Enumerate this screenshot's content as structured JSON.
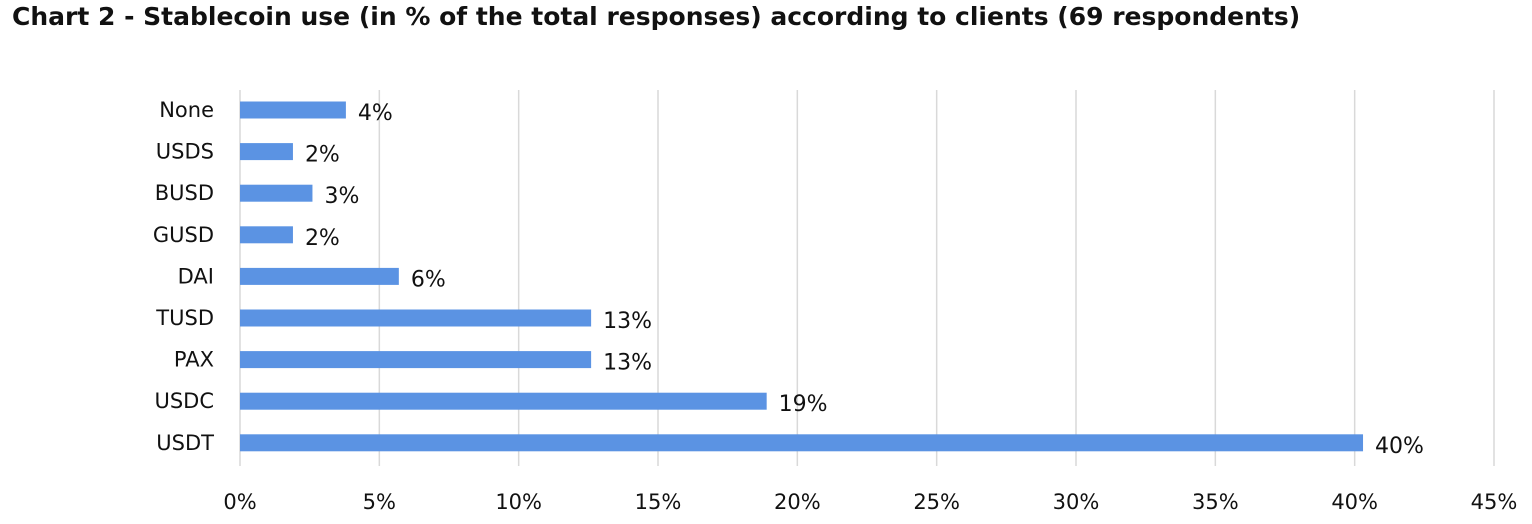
{
  "chart_data": {
    "type": "bar",
    "orientation": "horizontal",
    "title": "Chart 2 - Stablecoin use (in % of the total responses) according to clients (69 respondents)",
    "categories": [
      "None",
      "USDS",
      "BUSD",
      "GUSD",
      "DAI",
      "TUSD",
      "PAX",
      "USDC",
      "USDT"
    ],
    "values": [
      3.8,
      1.9,
      2.6,
      1.9,
      5.7,
      12.6,
      12.6,
      18.9,
      40.3
    ],
    "value_labels": [
      "4%",
      "2%",
      "3%",
      "2%",
      "6%",
      "13%",
      "13%",
      "19%",
      "40%"
    ],
    "xlim": [
      0,
      45
    ],
    "x_ticks": [
      0,
      5,
      10,
      15,
      20,
      25,
      30,
      35,
      40,
      45
    ],
    "x_tick_labels": [
      "0%",
      "5%",
      "10%",
      "15%",
      "20%",
      "25%",
      "30%",
      "35%",
      "40%",
      "45%"
    ],
    "xlabel": "",
    "ylabel": "",
    "grid": "vertical",
    "legend": "none",
    "bar_color": "#5B93E3",
    "grid_color": "#D9D9D9"
  }
}
